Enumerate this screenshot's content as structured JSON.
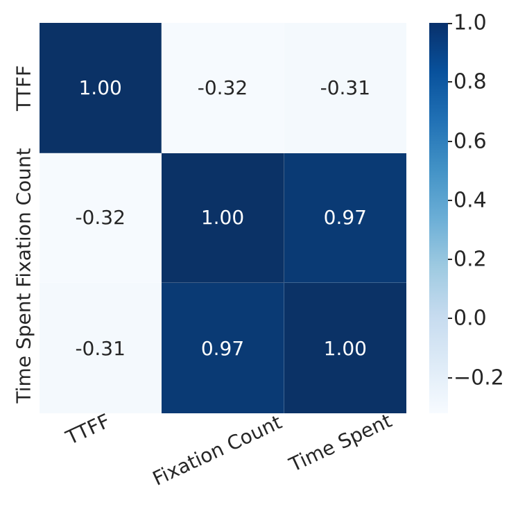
{
  "chart_data": {
    "type": "heatmap",
    "title": "",
    "categories": [
      "TTFF",
      "Fixation Count",
      "Time Spent"
    ],
    "matrix": [
      [
        1.0,
        -0.32,
        -0.31
      ],
      [
        -0.32,
        1.0,
        0.97
      ],
      [
        -0.31,
        0.97,
        1.0
      ]
    ],
    "colormap": "Blues",
    "vmin": -0.32,
    "vmax": 1.0,
    "annotations": true,
    "annotation_format": ".2f",
    "colorbar_ticks": [
      1.0,
      0.8,
      0.6,
      0.4,
      0.2,
      0.0,
      -0.2
    ],
    "colorbar_position": "right",
    "grid": false,
    "x_tick_rotation_deg": 25
  },
  "axes": {
    "x_labels": [
      "TTFF",
      "Fixation Count",
      "Time Spent"
    ],
    "y_labels": [
      "TTFF",
      "Fixation Count",
      "Time Spent"
    ]
  },
  "cells": [
    {
      "text": "1.00",
      "bg": "#0b3266",
      "fg": "#ffffff"
    },
    {
      "text": "-0.32",
      "bg": "#f6fafe",
      "fg": "#262626"
    },
    {
      "text": "-0.31",
      "bg": "#f4f9fd",
      "fg": "#262626"
    },
    {
      "text": "-0.32",
      "bg": "#f6fafe",
      "fg": "#262626"
    },
    {
      "text": "1.00",
      "bg": "#0b3266",
      "fg": "#ffffff"
    },
    {
      "text": "0.97",
      "bg": "#0a3a74",
      "fg": "#ffffff"
    },
    {
      "text": "-0.31",
      "bg": "#f4f9fd",
      "fg": "#262626"
    },
    {
      "text": "0.97",
      "bg": "#0a3a74",
      "fg": "#ffffff"
    },
    {
      "text": "1.00",
      "bg": "#0b3266",
      "fg": "#ffffff"
    }
  ],
  "colorbar": {
    "tick_labels": [
      "1.0",
      "0.8",
      "0.6",
      "0.4",
      "0.2",
      "0.0",
      "−0.2"
    ],
    "gradient": [
      "#f7fbff",
      "#deebf7",
      "#c6dbef",
      "#9ecae1",
      "#6baed6",
      "#4292c6",
      "#2171b5",
      "#08519c",
      "#08306b"
    ]
  },
  "colors": {
    "text": "#262626",
    "background": "#ffffff",
    "gridline": "rgba(255,255,255,0.22)",
    "max_color": "#08306b",
    "min_color": "#f7fbff"
  }
}
